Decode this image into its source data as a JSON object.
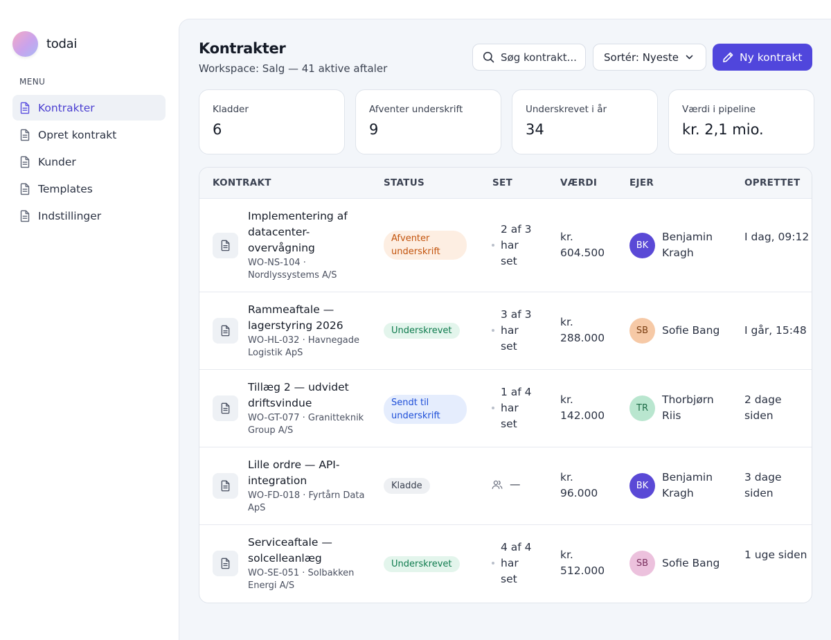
{
  "brand": {
    "name": "todai"
  },
  "sidebar": {
    "menu_label": "MENU",
    "items": [
      {
        "label": "Kontrakter",
        "active": true
      },
      {
        "label": "Opret kontrakt"
      },
      {
        "label": "Kunder"
      },
      {
        "label": "Templates"
      },
      {
        "label": "Indstillinger"
      }
    ]
  },
  "header": {
    "title": "Kontrakter",
    "subtitle": "Workspace: Salg — 41 aktive aftaler",
    "search_placeholder": "Søg kontrakt...",
    "sort_label": "Sortér: Nyeste",
    "new_button": "Ny kontrakt"
  },
  "stats": [
    {
      "label": "Kladder",
      "value": "6"
    },
    {
      "label": "Afventer underskrift",
      "value": "9"
    },
    {
      "label": "Underskrevet i år",
      "value": "34"
    },
    {
      "label": "Værdi i pipeline",
      "value": "kr. 2,1 mio."
    }
  ],
  "table": {
    "columns": [
      "KONTRAKT",
      "STATUS",
      "SET",
      "VÆRDI",
      "EJER",
      "OPRETTET"
    ],
    "rows": [
      {
        "title": "Implementering af datacenter-overvågning",
        "meta": "WO-NS-104 · Nordlyssystems A/S",
        "status": "Afventer underskrift",
        "status_tone": "orange",
        "set": "2 af 3 har set",
        "value": "kr. 604.500",
        "owner": {
          "initials": "BK",
          "name": "Benjamin Kragh",
          "bg": "#5a49d6",
          "fg": "#ffffff"
        },
        "created": "I dag, 09:12"
      },
      {
        "title": "Rammeaftale — lagerstyring 2026",
        "meta": "WO-HL-032 · Havnegade Logistik ApS",
        "status": "Underskrevet",
        "status_tone": "green",
        "set": "3 af 3 har set",
        "value": "kr. 288.000",
        "owner": {
          "initials": "SB",
          "name": "Sofie Bang",
          "bg": "#f6c9a6",
          "fg": "#7a3e12"
        },
        "created": "I går, 15:48"
      },
      {
        "title": "Tillæg 2 — udvidet driftsvindue",
        "meta": "WO-GT-077 · Granitteknik Group A/S",
        "status": "Sendt til underskrift",
        "status_tone": "blue",
        "set": "1 af 4 har set",
        "value": "kr. 142.000",
        "owner": {
          "initials": "TR",
          "name": "Thorbjørn Riis",
          "bg": "#b9e6cf",
          "fg": "#1d6b47"
        },
        "created": "2 dage siden"
      },
      {
        "title": "Lille ordre — API-integration",
        "meta": "WO-FD-018 · Fyrtårn Data ApS",
        "status": "Kladde",
        "status_tone": "grey",
        "set": "—",
        "value": "kr. 96.000",
        "owner": {
          "initials": "BK",
          "name": "Benjamin Kragh",
          "bg": "#5a49d6",
          "fg": "#ffffff"
        },
        "created": "3 dage siden"
      },
      {
        "title": "Serviceaftale — solcelleanlæg",
        "meta": "WO-SE-051 · Solbakken Energi A/S",
        "status": "Underskrevet",
        "status_tone": "green",
        "set": "4 af 4 har set",
        "value": "kr. 512.000",
        "owner": {
          "initials": "SB",
          "name": "Sofie Bang",
          "bg": "#ecc1dd",
          "fg": "#7a2f5e"
        },
        "created": "1 uge siden"
      }
    ]
  }
}
